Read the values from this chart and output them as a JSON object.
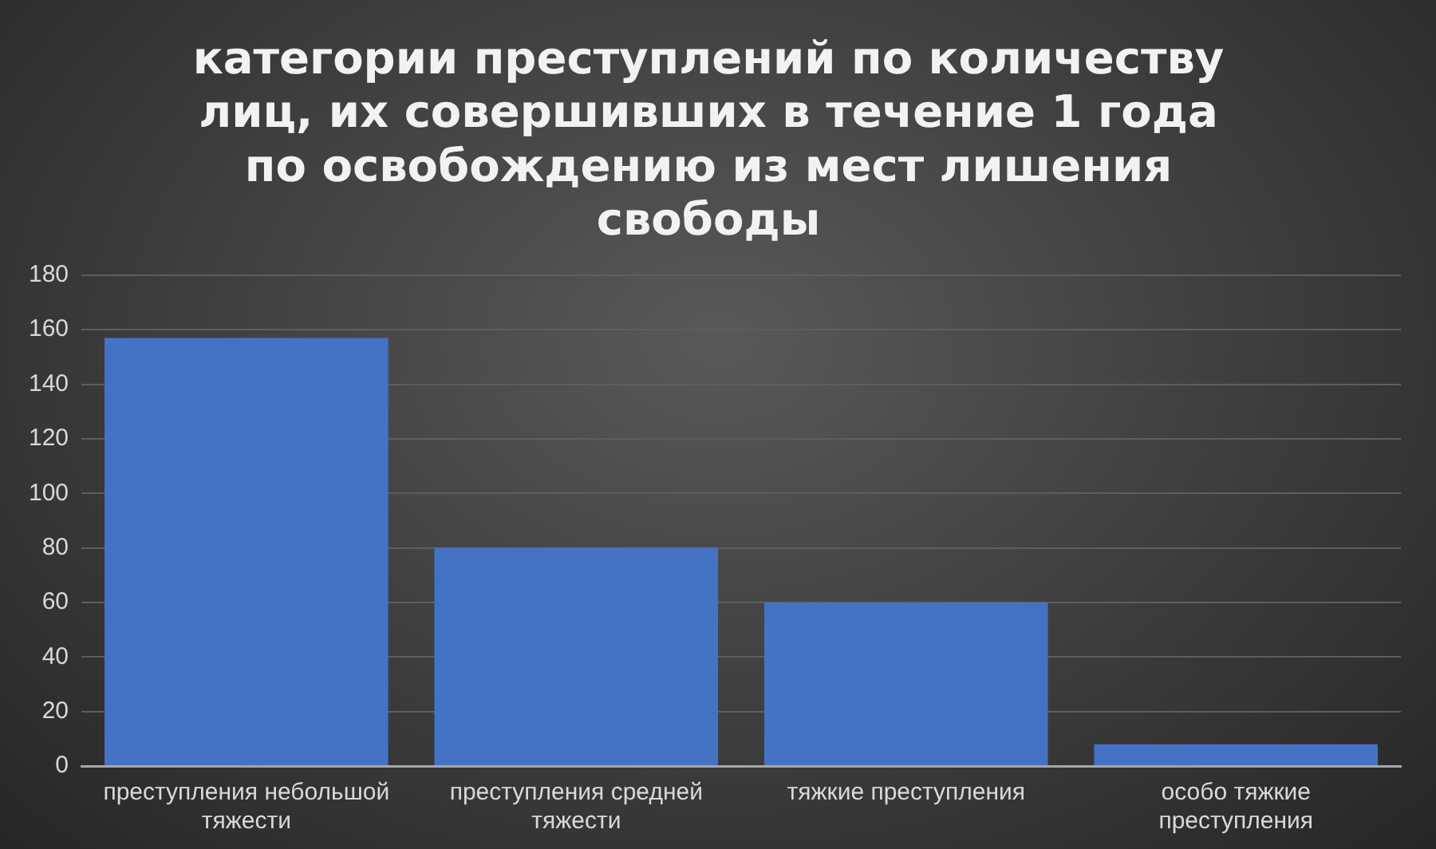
{
  "chart_data": {
    "type": "bar",
    "title": "категории преступлений по количеству лиц, их совершивших в течение 1 года по освобождению из мест лишения свободы",
    "categories": [
      "преступления небольшой тяжести",
      "преступления средней тяжести",
      "тяжкие преступления",
      "особо тяжкие преступления"
    ],
    "values": [
      157,
      80,
      60,
      8
    ],
    "color": "#4472c4",
    "ylim": [
      0,
      180
    ],
    "yticks": [
      0,
      20,
      40,
      60,
      80,
      100,
      120,
      140,
      160,
      180
    ],
    "grid": "y",
    "legend": false
  }
}
